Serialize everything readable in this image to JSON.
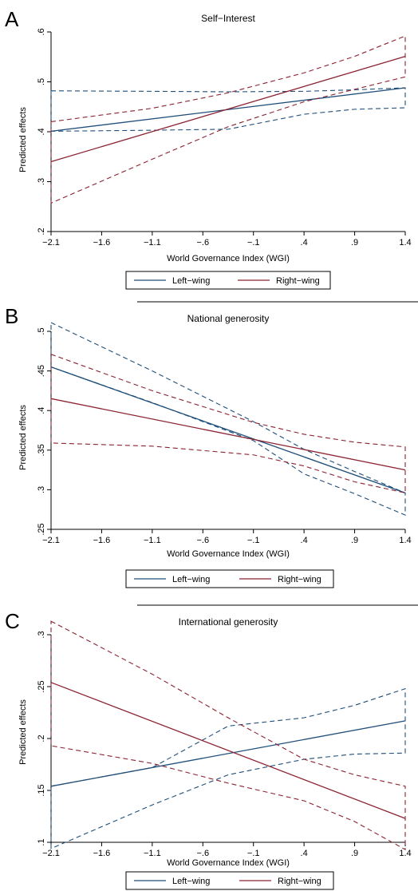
{
  "colors": {
    "left": "#1f4e79",
    "right": "#8b2332"
  },
  "chart_data": [
    {
      "panel": "A",
      "type": "line",
      "title": "Self−Interest",
      "xlabel": "World Governance Index (WGI)",
      "ylabel": "Predicted effects",
      "x_ticks": [
        -2.1,
        -1.6,
        -1.1,
        -0.6,
        -0.1,
        0.4,
        0.9,
        1.4
      ],
      "x_tick_labels": [
        "−2.1",
        "−1.6",
        "−1.1",
        "−.6",
        "−.1",
        ".4",
        ".9",
        "1.4"
      ],
      "y_ticks": [
        0.2,
        0.3,
        0.4,
        0.5,
        0.6
      ],
      "y_tick_labels": [
        ".2",
        ".3",
        ".4",
        ".5",
        ".6"
      ],
      "xlim": [
        -2.1,
        1.4
      ],
      "ylim": [
        0.2,
        0.6
      ],
      "legend": [
        "Left−wing",
        "Right−wing"
      ],
      "series": [
        {
          "name": "Left−wing",
          "x": [
            -2.1,
            1.4
          ],
          "y": [
            0.401,
            0.488
          ],
          "ci_x": [
            -2.1,
            -1.1,
            -0.35,
            0.4,
            0.9,
            1.4
          ],
          "ci_upper": [
            0.482,
            0.481,
            0.48,
            0.481,
            0.484,
            0.488
          ],
          "ci_lower": [
            0.401,
            0.403,
            0.405,
            0.435,
            0.445,
            0.448
          ]
        },
        {
          "name": "Right−wing",
          "x": [
            -2.1,
            1.4
          ],
          "y": [
            0.34,
            0.551
          ],
          "ci_x": [
            -2.1,
            -1.1,
            -0.35,
            0.4,
            0.9,
            1.4
          ],
          "ci_upper": [
            0.42,
            0.447,
            0.478,
            0.518,
            0.551,
            0.592
          ],
          "ci_lower": [
            0.257,
            0.345,
            0.41,
            0.46,
            0.485,
            0.51
          ]
        }
      ]
    },
    {
      "panel": "B",
      "type": "line",
      "title": "National generosity",
      "xlabel": "World Governance Index (WGI)",
      "ylabel": "Predicted effects",
      "x_ticks": [
        -2.1,
        -1.6,
        -1.1,
        -0.6,
        -0.1,
        0.4,
        0.9,
        1.4
      ],
      "x_tick_labels": [
        "−2.1",
        "−1.6",
        "−1.1",
        "−.6",
        "−.1",
        ".4",
        ".9",
        "1.4"
      ],
      "y_ticks": [
        0.25,
        0.3,
        0.35,
        0.4,
        0.45,
        0.5
      ],
      "y_tick_labels": [
        ".25",
        ".3",
        ".35",
        ".4",
        ".45",
        ".5"
      ],
      "xlim": [
        -2.1,
        1.4
      ],
      "ylim": [
        0.25,
        0.5
      ],
      "legend": [
        "Left−wing",
        "Right−wing"
      ],
      "series": [
        {
          "name": "Left−wing",
          "x": [
            -2.1,
            1.4
          ],
          "y": [
            0.455,
            0.296
          ],
          "ci_x": [
            -2.1,
            -1.1,
            -0.1,
            0.4,
            0.9,
            1.4
          ],
          "ci_upper": [
            0.511,
            0.45,
            0.386,
            0.351,
            0.323,
            0.296
          ],
          "ci_lower": [
            0.455,
            0.41,
            0.362,
            0.32,
            0.295,
            0.268
          ]
        },
        {
          "name": "Right−wing",
          "x": [
            -2.1,
            1.4
          ],
          "y": [
            0.415,
            0.325
          ],
          "ci_x": [
            -2.1,
            -1.1,
            -0.1,
            0.4,
            0.9,
            1.4
          ],
          "ci_upper": [
            0.471,
            0.425,
            0.385,
            0.37,
            0.36,
            0.354
          ],
          "ci_lower": [
            0.359,
            0.355,
            0.344,
            0.33,
            0.31,
            0.296
          ]
        }
      ]
    },
    {
      "panel": "C",
      "type": "line",
      "title": "International generosity",
      "xlabel": "World Governance Index (WGI)",
      "ylabel": "Predicted effects",
      "x_ticks": [
        -2.1,
        -1.6,
        -1.1,
        -0.6,
        -0.1,
        0.4,
        0.9,
        1.4
      ],
      "x_tick_labels": [
        "−2.1",
        "−1.6",
        "−1.1",
        "−.6",
        "−.1",
        ".4",
        ".9",
        "1.4"
      ],
      "y_ticks": [
        0.1,
        0.15,
        0.2,
        0.25,
        0.3
      ],
      "y_tick_labels": [
        ".1",
        ".15",
        ".2",
        ".25",
        ".3"
      ],
      "xlim": [
        -2.1,
        1.4
      ],
      "ylim": [
        0.1,
        0.3
      ],
      "legend": [
        "Left−wing",
        "Right−wing"
      ],
      "series": [
        {
          "name": "Left−wing",
          "x": [
            -2.1,
            1.4
          ],
          "y": [
            0.154,
            0.217
          ],
          "ci_x": [
            -2.1,
            -1.1,
            -0.35,
            0.4,
            0.9,
            1.4
          ],
          "ci_upper": [
            0.154,
            0.172,
            0.212,
            0.22,
            0.232,
            0.248
          ],
          "ci_lower": [
            0.094,
            0.136,
            0.165,
            0.18,
            0.185,
            0.186
          ]
        },
        {
          "name": "Right−wing",
          "x": [
            -2.1,
            1.4
          ],
          "y": [
            0.254,
            0.123
          ],
          "ci_x": [
            -2.1,
            -1.1,
            -0.35,
            0.4,
            0.9,
            1.4
          ],
          "ci_upper": [
            0.313,
            0.262,
            0.22,
            0.18,
            0.165,
            0.154
          ],
          "ci_lower": [
            0.193,
            0.176,
            0.157,
            0.14,
            0.12,
            0.093
          ]
        }
      ]
    }
  ]
}
